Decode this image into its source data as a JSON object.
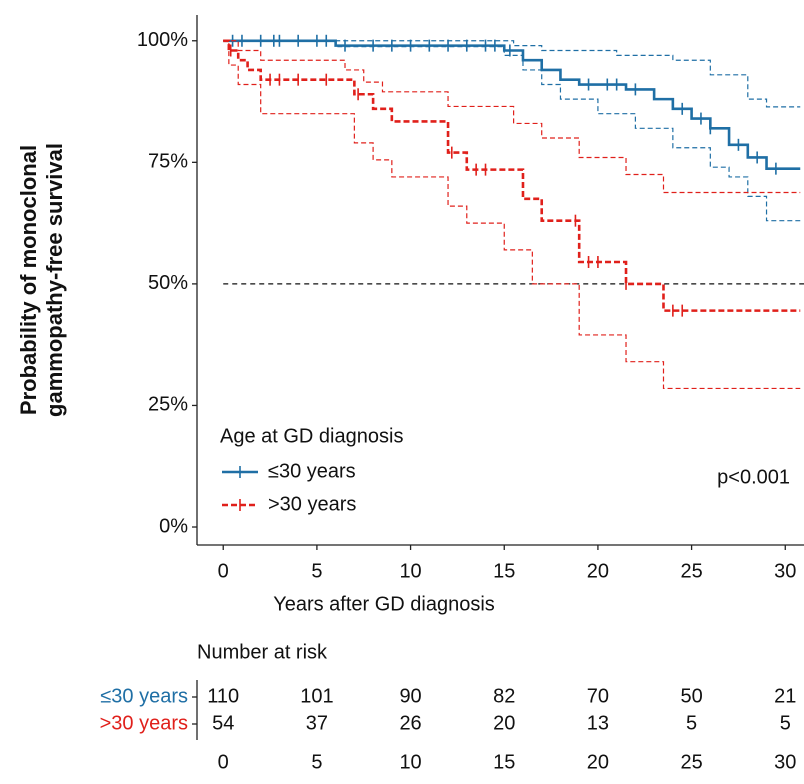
{
  "chart_data": {
    "type": "step",
    "y_label": [
      "Probability of monoclonal",
      "gammopathy-free survival"
    ],
    "x_label": "Years after GD diagnosis",
    "xlim": [
      -1.4,
      31
    ],
    "ylim": [
      -3.7,
      105.3
    ],
    "xticks": [
      0,
      5,
      10,
      15,
      20,
      25,
      30
    ],
    "yticks": [
      {
        "value": 0,
        "label": "0%"
      },
      {
        "value": 25,
        "label": "25%"
      },
      {
        "value": 50,
        "label": "50%"
      },
      {
        "value": 75,
        "label": "75%"
      },
      {
        "value": 100,
        "label": "100%"
      }
    ],
    "reference_line": 50,
    "legend_title": "Age at GD diagnosis",
    "annotation": "p<0.001",
    "series": [
      {
        "name": "≤30 years",
        "color": "#1f6fa5",
        "linestyle": "solid",
        "x": [
          0,
          6,
          15,
          16,
          17,
          18,
          19,
          21.5,
          23,
          24,
          25,
          26,
          27,
          28,
          29,
          30.8
        ],
        "values": [
          100,
          99,
          98,
          96,
          94,
          92,
          91,
          90,
          88,
          86,
          84,
          82,
          78.6,
          76,
          73.7,
          73.7
        ],
        "ci_upper": {
          "x": [
            0,
            15.5,
            17,
            21,
            24,
            26,
            28,
            29,
            30.8
          ],
          "values": [
            100,
            99,
            98,
            97,
            96,
            93,
            88,
            86.4,
            86.4
          ]
        },
        "ci_lower": {
          "x": [
            0,
            6,
            15,
            16,
            17,
            18,
            20,
            22,
            24,
            26,
            27,
            28,
            29,
            30.8
          ],
          "values": [
            100,
            98.8,
            97,
            94,
            91,
            88,
            85,
            82,
            78,
            74,
            72,
            68,
            63,
            63
          ]
        },
        "censor_x": [
          0.5,
          1,
          2,
          2.7,
          3,
          4,
          5,
          5.5,
          6.5,
          8,
          9,
          10,
          11,
          12,
          13,
          14,
          14.5,
          15.3,
          19.5,
          20.5,
          21,
          22,
          24.5,
          25.5,
          26,
          27.5,
          28.5,
          29.5
        ]
      },
      {
        "name": ">30 years",
        "color": "#e0201b",
        "linestyle": "dashed",
        "x": [
          0,
          0.3,
          0.8,
          1.3,
          2,
          7,
          8,
          9,
          12,
          13,
          16,
          17,
          19,
          21.5,
          23.5,
          30.8
        ],
        "values": [
          100,
          98,
          96,
          94,
          92,
          89,
          86,
          83.4,
          77,
          73.5,
          67.5,
          63,
          54.5,
          50,
          44.5,
          44.5
        ],
        "ci_upper": {
          "x": [
            0,
            0.8,
            2,
            6.5,
            7.5,
            8.5,
            12,
            15.5,
            17,
            19,
            21.5,
            23.5,
            30.8
          ],
          "values": [
            100,
            98,
            96,
            94,
            91.5,
            89.5,
            86.5,
            83,
            80,
            76,
            72.5,
            68.8,
            68.8
          ]
        },
        "ci_lower": {
          "x": [
            0,
            0.3,
            0.8,
            2,
            7,
            8,
            9,
            12,
            13,
            15,
            16.5,
            19,
            21.5,
            23.5,
            30.8
          ],
          "values": [
            100,
            95,
            91,
            85,
            79,
            75.5,
            72,
            66,
            62.5,
            57,
            50,
            39.5,
            34,
            28.5,
            28.5
          ]
        },
        "censor_x": [
          0.4,
          2.5,
          3,
          4,
          5.5,
          7.2,
          12.2,
          13.5,
          14,
          18.8,
          19.5,
          20,
          21.5,
          24,
          24.5
        ]
      }
    ],
    "risk_table": {
      "title": "Number at risk",
      "times": [
        0,
        5,
        10,
        15,
        20,
        25,
        30
      ],
      "rows": [
        {
          "name": "≤30 years",
          "color": "#1f6fa5",
          "values": [
            110,
            101,
            90,
            82,
            70,
            50,
            21
          ]
        },
        {
          "name": ">30 years",
          "color": "#e0201b",
          "values": [
            54,
            37,
            26,
            20,
            13,
            5,
            5
          ]
        }
      ]
    }
  }
}
